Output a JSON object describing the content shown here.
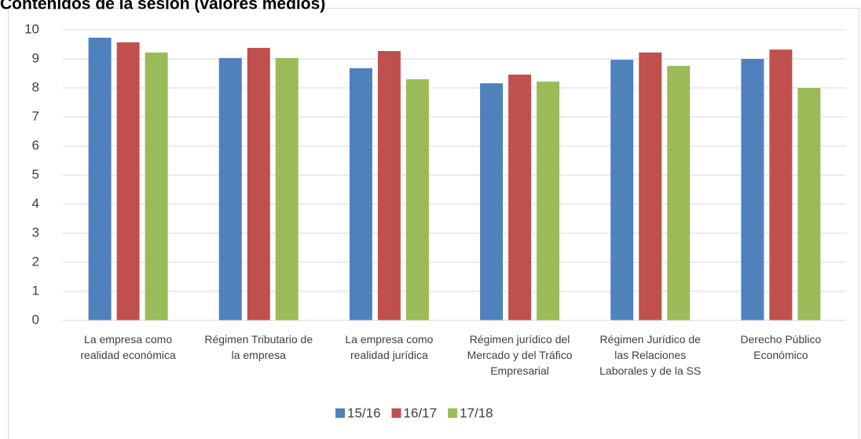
{
  "chart_data": {
    "type": "bar",
    "title": "Contenidos de la sesión (valores medios)",
    "categories": [
      "La empresa como realidad económica",
      "Régimen Tributario de la empresa",
      "La empresa como realidad jurídica",
      "Régimen jurídico del Mercado y del Tráfico Empresarial",
      "Régimen Jurídico de las Relaciones Laborales y de la SS",
      "Derecho Público Económico"
    ],
    "series": [
      {
        "name": "15/16",
        "color": "#4f81bd",
        "values": [
          9.73,
          9.03,
          8.68,
          8.16,
          8.97,
          9.0
        ]
      },
      {
        "name": "16/17",
        "color": "#c0504d",
        "values": [
          9.57,
          9.38,
          9.27,
          8.46,
          9.22,
          9.32
        ]
      },
      {
        "name": "17/18",
        "color": "#9bbb59",
        "values": [
          9.22,
          9.03,
          8.3,
          8.22,
          8.76,
          8.0
        ]
      }
    ],
    "ylim": [
      0,
      10
    ],
    "yticks": [
      0,
      1,
      2,
      3,
      4,
      5,
      6,
      7,
      8,
      9,
      10
    ],
    "grid": true,
    "legend": "bottom"
  }
}
